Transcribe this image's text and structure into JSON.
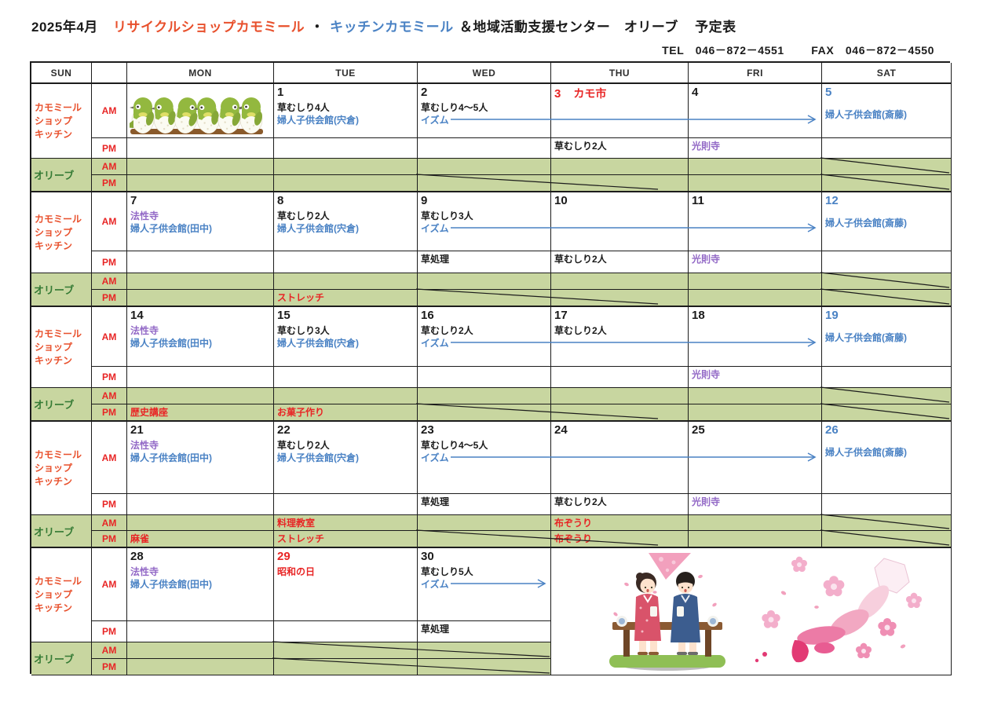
{
  "title": {
    "year_month": "2025年4月",
    "shop_name": "リサイクルショップカモミール",
    "separator": "・",
    "kitchen_name": "キッチンカモミール",
    "center_name": "＆地域活動支援センター　オリーブ",
    "suffix": "予定表"
  },
  "contact": {
    "tel": "TEL　046－872－4551",
    "fax": "FAX　046－872－4550"
  },
  "day_headers": [
    {
      "key": "sun",
      "label": "SUN",
      "color": "red"
    },
    {
      "key": "ampm",
      "label": ""
    },
    {
      "key": "mon",
      "label": "MON",
      "color": "black"
    },
    {
      "key": "tue",
      "label": "TUE",
      "color": "black"
    },
    {
      "key": "wed",
      "label": "WED",
      "color": "black"
    },
    {
      "key": "thu",
      "label": "THU",
      "color": "black"
    },
    {
      "key": "fri",
      "label": "FRI",
      "color": "black"
    },
    {
      "key": "sat",
      "label": "SAT",
      "color": "blue"
    }
  ],
  "row_labels": {
    "kamomiru": [
      "カモミール",
      "ショップ",
      "キッチン"
    ],
    "olive": "オリーブ",
    "am": "AM",
    "pm": "PM"
  },
  "weeks": [
    {
      "days": [
        {
          "dow": "mon",
          "day": "",
          "illustration": "white-eye-birds"
        },
        {
          "dow": "tue",
          "day": "1",
          "am": [
            {
              "t": "草むしり4人",
              "c": "black"
            },
            {
              "t": "婦人子供会館(宍倉)",
              "c": "blue"
            }
          ]
        },
        {
          "dow": "wed",
          "day": "2",
          "am": [
            {
              "t": "草むしり4～5人",
              "c": "black"
            },
            {
              "t": "イズム",
              "c": "blue"
            }
          ]
        },
        {
          "dow": "thu",
          "day": "3",
          "day_color": "red",
          "day_suffix": "カモ市",
          "pm": [
            {
              "t": "草むしり2人",
              "c": "black"
            }
          ]
        },
        {
          "dow": "fri",
          "day": "4",
          "pm": [
            {
              "t": "光則寺",
              "c": "purple"
            }
          ]
        },
        {
          "dow": "sat",
          "day": "5",
          "day_color": "blue",
          "am": [
            {
              "t": "婦人子供会館(斎藤)",
              "c": "blue"
            }
          ]
        }
      ],
      "olive_am": [],
      "olive_pm": [],
      "arrow_to": "fri",
      "diagonals": [
        "oam:sat",
        "opm:wedthu",
        "opm:sat"
      ]
    },
    {
      "days": [
        {
          "dow": "mon",
          "day": "7",
          "am": [
            {
              "t": "法性寺",
              "c": "purple"
            },
            {
              "t": "婦人子供会館(田中)",
              "c": "blue"
            }
          ]
        },
        {
          "dow": "tue",
          "day": "8",
          "am": [
            {
              "t": "草むしり2人",
              "c": "black"
            },
            {
              "t": "婦人子供会館(宍倉)",
              "c": "blue"
            }
          ]
        },
        {
          "dow": "wed",
          "day": "9",
          "am": [
            {
              "t": "草むしり3人",
              "c": "black"
            },
            {
              "t": "イズム",
              "c": "blue"
            }
          ],
          "pm": [
            {
              "t": "草処理",
              "c": "black"
            }
          ]
        },
        {
          "dow": "thu",
          "day": "10",
          "pm": [
            {
              "t": "草むしり2人",
              "c": "black"
            }
          ]
        },
        {
          "dow": "fri",
          "day": "11",
          "pm": [
            {
              "t": "光則寺",
              "c": "purple"
            }
          ]
        },
        {
          "dow": "sat",
          "day": "12",
          "day_color": "blue",
          "am": [
            {
              "t": "婦人子供会館(斎藤)",
              "c": "blue"
            }
          ]
        }
      ],
      "olive_am": [],
      "olive_pm": [
        {
          "dow": "tue",
          "t": "ストレッチ"
        }
      ],
      "arrow_to": "fri",
      "diagonals": [
        "oam:sat",
        "opm:wedthu",
        "opm:sat"
      ]
    },
    {
      "days": [
        {
          "dow": "mon",
          "day": "14",
          "am": [
            {
              "t": "法性寺",
              "c": "purple"
            },
            {
              "t": "婦人子供会館(田中)",
              "c": "blue"
            }
          ]
        },
        {
          "dow": "tue",
          "day": "15",
          "am": [
            {
              "t": "草むしり3人",
              "c": "black"
            },
            {
              "t": "婦人子供会館(宍倉)",
              "c": "blue"
            }
          ]
        },
        {
          "dow": "wed",
          "day": "16",
          "am": [
            {
              "t": "草むしり2人",
              "c": "black"
            },
            {
              "t": "イズム",
              "c": "blue"
            }
          ]
        },
        {
          "dow": "thu",
          "day": "17",
          "am": [
            {
              "t": "草むしり2人",
              "c": "black"
            }
          ]
        },
        {
          "dow": "fri",
          "day": "18",
          "pm": [
            {
              "t": "光則寺",
              "c": "purple"
            }
          ]
        },
        {
          "dow": "sat",
          "day": "19",
          "day_color": "blue",
          "am": [
            {
              "t": "婦人子供会館(斎藤)",
              "c": "blue"
            }
          ]
        }
      ],
      "olive_am": [],
      "olive_pm": [
        {
          "dow": "mon",
          "t": "歴史講座"
        },
        {
          "dow": "tue",
          "t": "お菓子作り"
        }
      ],
      "arrow_to": "fri",
      "diagonals": [
        "oam:sat",
        "opm:wedthu",
        "opm:sat"
      ]
    },
    {
      "days": [
        {
          "dow": "mon",
          "day": "21",
          "am": [
            {
              "t": "法性寺",
              "c": "purple"
            },
            {
              "t": "婦人子供会館(田中)",
              "c": "blue"
            }
          ]
        },
        {
          "dow": "tue",
          "day": "22",
          "am": [
            {
              "t": "草むしり2人",
              "c": "black"
            },
            {
              "t": "婦人子供会館(宍倉)",
              "c": "blue"
            }
          ]
        },
        {
          "dow": "wed",
          "day": "23",
          "am": [
            {
              "t": "草むしり4～5人",
              "c": "black"
            },
            {
              "t": "イズム",
              "c": "blue"
            }
          ],
          "pm": [
            {
              "t": "草処理",
              "c": "black"
            }
          ]
        },
        {
          "dow": "thu",
          "day": "24",
          "pm": [
            {
              "t": "草むしり2人",
              "c": "black"
            }
          ]
        },
        {
          "dow": "fri",
          "day": "25",
          "pm": [
            {
              "t": "光則寺",
              "c": "purple"
            }
          ]
        },
        {
          "dow": "sat",
          "day": "26",
          "day_color": "blue",
          "am": [
            {
              "t": "婦人子供会館(斎藤)",
              "c": "blue"
            }
          ]
        }
      ],
      "olive_am": [
        {
          "dow": "tue",
          "t": "料理教室"
        },
        {
          "dow": "thu",
          "t": "布ぞうり"
        }
      ],
      "olive_pm": [
        {
          "dow": "mon",
          "t": "麻雀"
        },
        {
          "dow": "tue",
          "t": "ストレッチ"
        },
        {
          "dow": "thu",
          "t": "布ぞうり"
        }
      ],
      "arrow_to": "fri",
      "diagonals": [
        "oam:sat",
        "opm:wedthu",
        "opm:sat"
      ]
    },
    {
      "days": [
        {
          "dow": "mon",
          "day": "28",
          "am": [
            {
              "t": "法性寺",
              "c": "purple"
            },
            {
              "t": "婦人子供会館(田中)",
              "c": "blue"
            }
          ]
        },
        {
          "dow": "tue",
          "day": "29",
          "day_color": "red",
          "am": [
            {
              "t": "昭和の日",
              "c": "red"
            }
          ]
        },
        {
          "dow": "wed",
          "day": "30",
          "am": [
            {
              "t": "草むしり5人",
              "c": "black"
            },
            {
              "t": "イズム",
              "c": "blue"
            }
          ],
          "pm": [
            {
              "t": "草処理",
              "c": "black"
            }
          ]
        }
      ],
      "olive_am": [],
      "olive_pm": [],
      "merged_illustrations": [
        "hanami-couple",
        "japan-sakura-map"
      ],
      "arrow_to": "wed",
      "diagonals": [
        "oam:tuewed",
        "opm:tuewed"
      ]
    }
  ],
  "colors": {
    "red": "#e82525",
    "orange_red": "#e8502c",
    "blue": "#4a82c4",
    "purple": "#9268c6",
    "black": "#1a1a1a",
    "green_bg": "#c8d6a0",
    "olive_green": "#347a34",
    "border": "#1c1c1c",
    "arrow_blue": "#4a82c4"
  },
  "illustrations": [
    "white-eye-birds",
    "hanami-couple",
    "japan-sakura-map"
  ]
}
